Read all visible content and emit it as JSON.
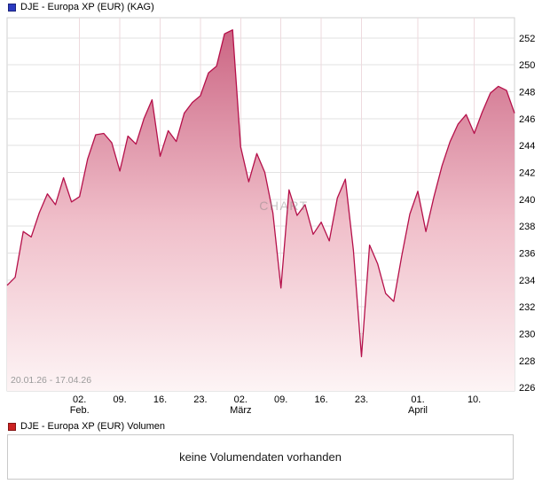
{
  "header": {
    "legend_label": "DJE - Europa XP (EUR) (KAG)",
    "legend_color": "#2b3ac1"
  },
  "volume": {
    "legend_label": "DJE - Europa XP (EUR) Volumen",
    "legend_color": "#cc2222",
    "empty_message": "keine Volumendaten vorhanden"
  },
  "chart_data": {
    "type": "area",
    "title": "DJE - Europa XP (EUR) (KAG)",
    "range_label": "20.01.26 - 17.04.26",
    "watermark": "CHART",
    "ylabel": "",
    "xlabel": "",
    "ylim": [
      226,
      252
    ],
    "grid": true,
    "line_color": "#b5104a",
    "area_top_color": "#c9607f",
    "area_mid_color": "#f0bfca",
    "area_bottom_color": "#fdf4f5",
    "h_grid_color": "#e2e2e2",
    "v_grid_color": "#eedade",
    "y_ticks": [
      226,
      228,
      230,
      232,
      234,
      236,
      238,
      240,
      242,
      244,
      246,
      248,
      250,
      252
    ],
    "x_ticks": [
      {
        "index": 9,
        "label": "02.",
        "sublabel": "Feb."
      },
      {
        "index": 14,
        "label": "09.",
        "sublabel": ""
      },
      {
        "index": 19,
        "label": "16.",
        "sublabel": ""
      },
      {
        "index": 24,
        "label": "23.",
        "sublabel": ""
      },
      {
        "index": 29,
        "label": "02.",
        "sublabel": "März"
      },
      {
        "index": 34,
        "label": "09.",
        "sublabel": ""
      },
      {
        "index": 39,
        "label": "16.",
        "sublabel": ""
      },
      {
        "index": 44,
        "label": "23.",
        "sublabel": ""
      },
      {
        "index": 51,
        "label": "01.",
        "sublabel": "April"
      },
      {
        "index": 58,
        "label": "10.",
        "sublabel": ""
      }
    ],
    "values": [
      233.6,
      234.2,
      237.6,
      237.2,
      239.0,
      240.4,
      239.6,
      241.6,
      239.8,
      240.2,
      243.0,
      244.8,
      244.9,
      244.2,
      242.1,
      244.7,
      244.1,
      246.0,
      247.4,
      243.2,
      245.1,
      244.3,
      246.4,
      247.2,
      247.7,
      249.4,
      249.9,
      252.3,
      252.6,
      243.9,
      241.3,
      243.4,
      242.0,
      239.0,
      233.4,
      240.7,
      238.8,
      239.6,
      237.4,
      238.3,
      236.9,
      240.1,
      241.5,
      236.2,
      228.3,
      236.6,
      235.2,
      233.0,
      232.4,
      235.8,
      238.9,
      240.6,
      237.6,
      240.2,
      242.5,
      244.3,
      245.6,
      246.3,
      244.9,
      246.5,
      247.9,
      248.4,
      248.1,
      246.4
    ]
  }
}
